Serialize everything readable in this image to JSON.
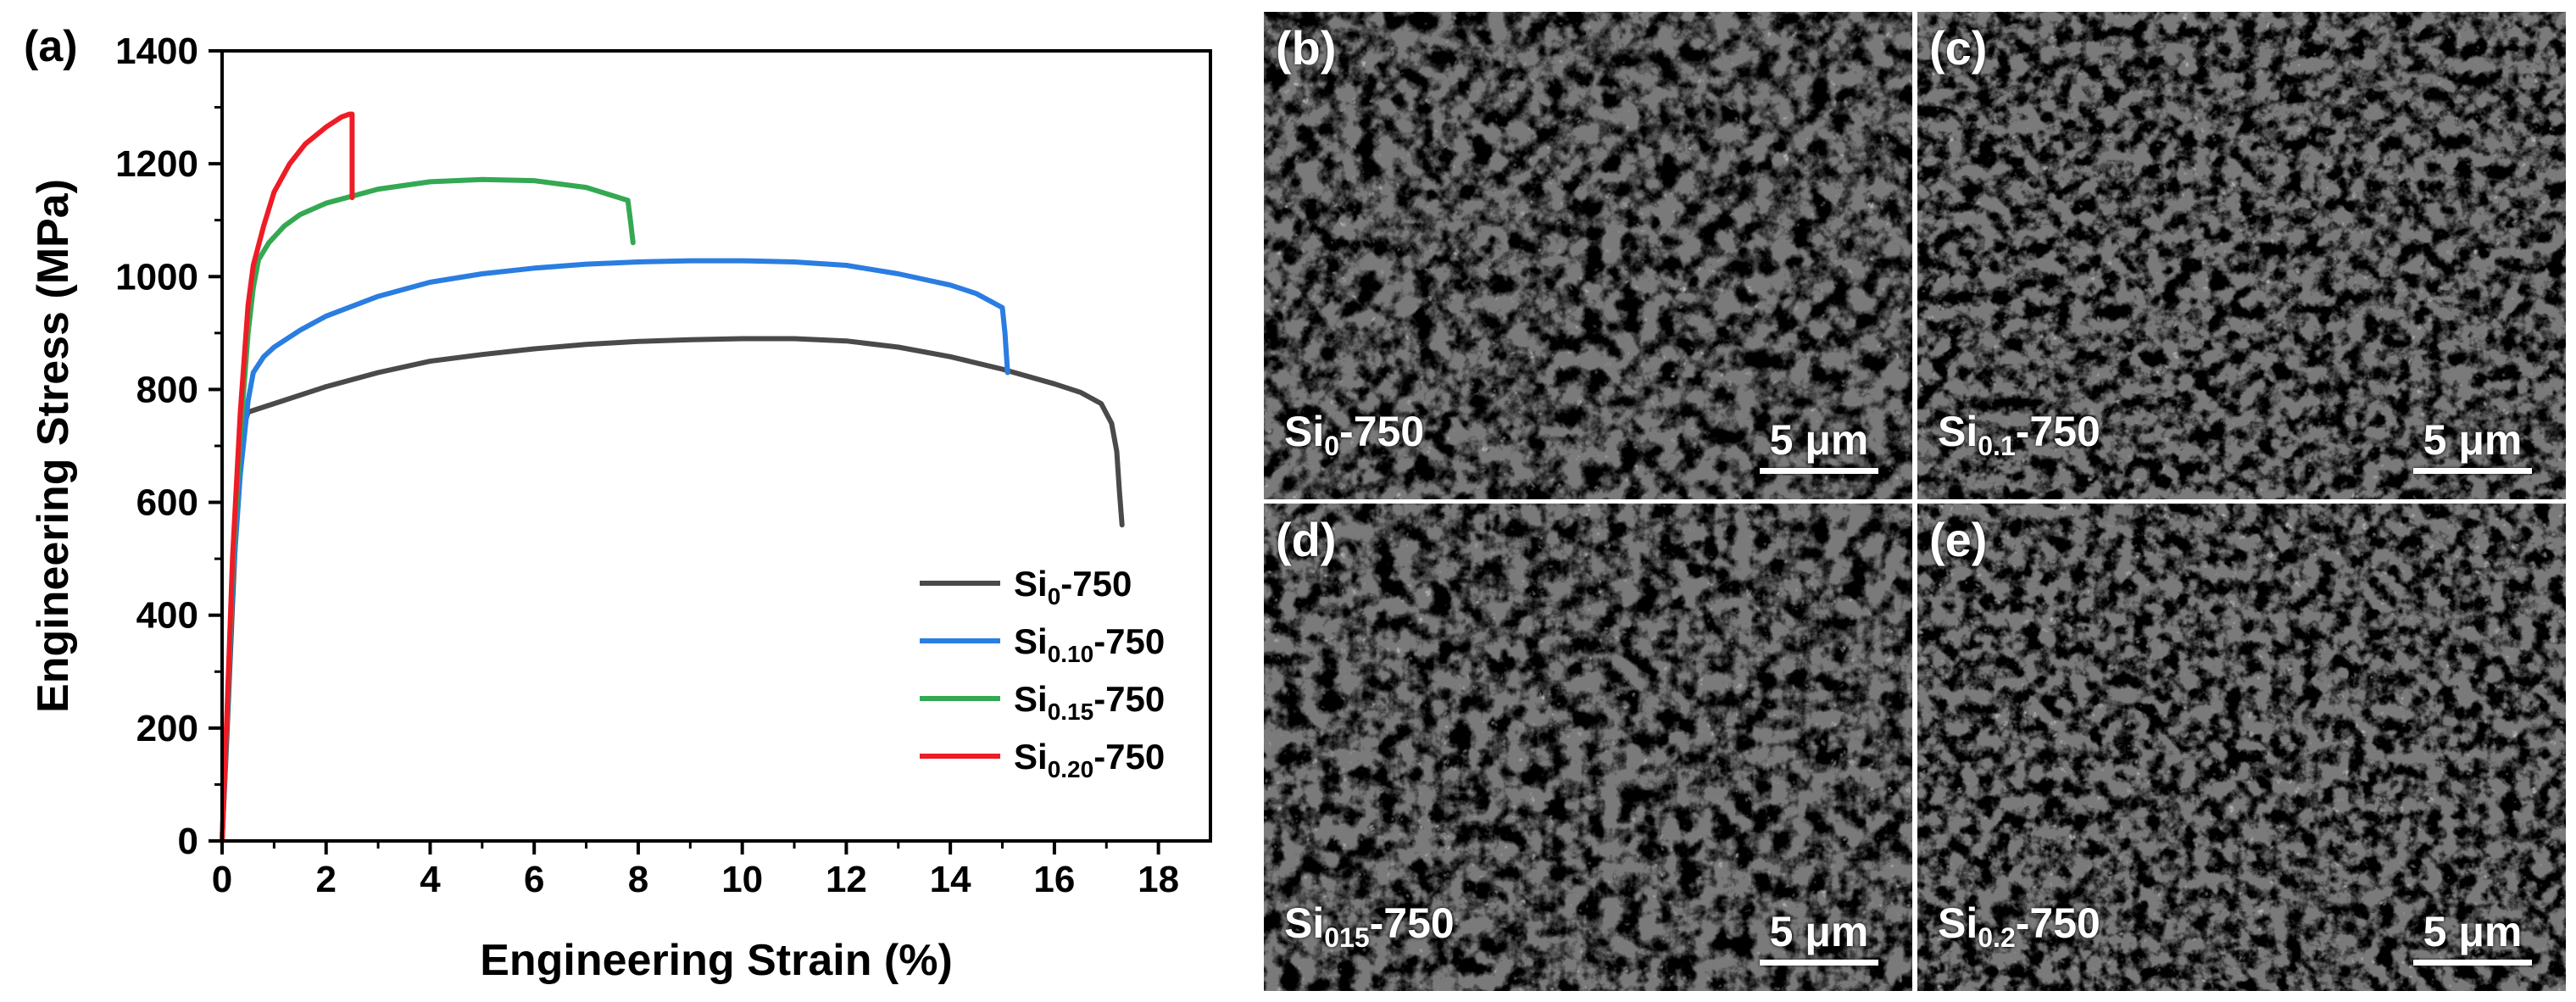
{
  "chart_data": {
    "type": "line",
    "panel_label": "(a)",
    "xlabel": "Engineering Strain (%)",
    "ylabel": "Engineering Stress (MPa)",
    "xlim": [
      0,
      19
    ],
    "ylim": [
      0,
      1400
    ],
    "xticks": [
      0,
      2,
      4,
      6,
      8,
      10,
      12,
      14,
      16,
      18
    ],
    "yticks": [
      0,
      200,
      400,
      600,
      800,
      1000,
      1200,
      1400
    ],
    "legend_position": "bottom-right",
    "series": [
      {
        "name": "Si0-750",
        "name_base": "Si",
        "name_sub": "0",
        "name_suffix": "-750",
        "color": "#4a4a4a",
        "points": [
          [
            0,
            0
          ],
          [
            0.1,
            200
          ],
          [
            0.2,
            420
          ],
          [
            0.3,
            620
          ],
          [
            0.4,
            730
          ],
          [
            0.5,
            760
          ],
          [
            1,
            775
          ],
          [
            2,
            805
          ],
          [
            3,
            830
          ],
          [
            4,
            850
          ],
          [
            5,
            862
          ],
          [
            6,
            872
          ],
          [
            7,
            880
          ],
          [
            8,
            885
          ],
          [
            9,
            888
          ],
          [
            10,
            890
          ],
          [
            11,
            890
          ],
          [
            12,
            886
          ],
          [
            13,
            875
          ],
          [
            14,
            858
          ],
          [
            15,
            836
          ],
          [
            16,
            810
          ],
          [
            16.5,
            795
          ],
          [
            16.9,
            775
          ],
          [
            17.1,
            740
          ],
          [
            17.2,
            690
          ],
          [
            17.25,
            620
          ],
          [
            17.3,
            560
          ]
        ]
      },
      {
        "name": "Si0.10-750",
        "name_base": "Si",
        "name_sub": "0.10",
        "name_suffix": "-750",
        "color": "#2a7de1",
        "points": [
          [
            0,
            0
          ],
          [
            0.1,
            220
          ],
          [
            0.2,
            450
          ],
          [
            0.35,
            650
          ],
          [
            0.5,
            780
          ],
          [
            0.6,
            830
          ],
          [
            0.8,
            858
          ],
          [
            1,
            875
          ],
          [
            1.5,
            905
          ],
          [
            2,
            930
          ],
          [
            3,
            965
          ],
          [
            4,
            990
          ],
          [
            5,
            1005
          ],
          [
            6,
            1015
          ],
          [
            7,
            1022
          ],
          [
            8,
            1026
          ],
          [
            9,
            1028
          ],
          [
            10,
            1028
          ],
          [
            11,
            1026
          ],
          [
            12,
            1020
          ],
          [
            13,
            1005
          ],
          [
            14,
            985
          ],
          [
            14.5,
            970
          ],
          [
            15,
            945
          ],
          [
            15.05,
            900
          ],
          [
            15.1,
            830
          ]
        ]
      },
      {
        "name": "Si0.15-750",
        "name_base": "Si",
        "name_sub": "0.15",
        "name_suffix": "-750",
        "color": "#34a853",
        "points": [
          [
            0,
            0
          ],
          [
            0.1,
            230
          ],
          [
            0.2,
            480
          ],
          [
            0.35,
            720
          ],
          [
            0.5,
            900
          ],
          [
            0.6,
            980
          ],
          [
            0.7,
            1030
          ],
          [
            0.9,
            1060
          ],
          [
            1.2,
            1090
          ],
          [
            1.5,
            1110
          ],
          [
            2,
            1130
          ],
          [
            3,
            1155
          ],
          [
            4,
            1168
          ],
          [
            5,
            1172
          ],
          [
            6,
            1170
          ],
          [
            7,
            1158
          ],
          [
            7.8,
            1135
          ],
          [
            7.85,
            1100
          ],
          [
            7.9,
            1060
          ]
        ]
      },
      {
        "name": "Si0.20-750",
        "name_base": "Si",
        "name_sub": "0.20",
        "name_suffix": "-750",
        "color": "#ee1c25",
        "points": [
          [
            0,
            0
          ],
          [
            0.1,
            240
          ],
          [
            0.2,
            500
          ],
          [
            0.35,
            760
          ],
          [
            0.5,
            950
          ],
          [
            0.6,
            1020
          ],
          [
            0.8,
            1090
          ],
          [
            1,
            1150
          ],
          [
            1.3,
            1200
          ],
          [
            1.6,
            1235
          ],
          [
            2,
            1265
          ],
          [
            2.3,
            1283
          ],
          [
            2.45,
            1288
          ],
          [
            2.5,
            1288
          ],
          [
            2.5,
            1240
          ],
          [
            2.5,
            1140
          ]
        ]
      }
    ]
  },
  "images": [
    {
      "letter": "(b)",
      "label_base": "Si",
      "label_sub": "0",
      "label_suffix": "-750",
      "scale": "5 μm"
    },
    {
      "letter": "(c)",
      "label_base": "Si",
      "label_sub": "0.1",
      "label_suffix": "-750",
      "scale": "5 μm"
    },
    {
      "letter": "(d)",
      "label_base": "Si",
      "label_sub": "015",
      "label_suffix": "-750",
      "scale": "5 μm"
    },
    {
      "letter": "(e)",
      "label_base": "Si",
      "label_sub": "0.2",
      "label_suffix": "-750",
      "scale": "5 μm"
    }
  ]
}
